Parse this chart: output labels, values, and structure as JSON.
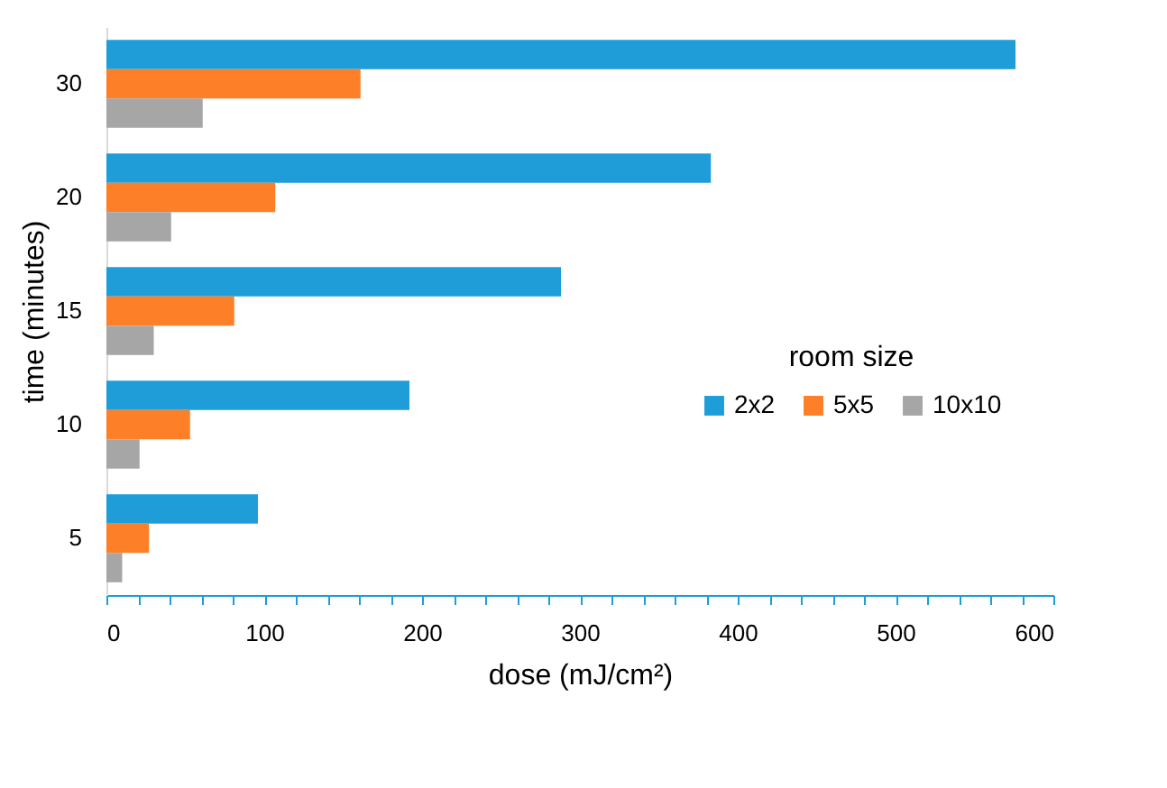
{
  "chart_data": {
    "type": "bar",
    "orientation": "horizontal",
    "xlabel": "dose (mJ/cm²)",
    "ylabel": "time (minutes)",
    "legend_title": "room size",
    "categories": [
      "30",
      "20",
      "15",
      "10",
      "5"
    ],
    "series": [
      {
        "name": "2x2",
        "color": "#1f9dd9",
        "values": [
          576,
          383,
          288,
          192,
          96
        ]
      },
      {
        "name": "5x5",
        "color": "#fd7f27",
        "values": [
          161,
          107,
          81,
          53,
          27
        ]
      },
      {
        "name": "10x10",
        "color": "#a6a6a6",
        "values": [
          61,
          41,
          30,
          21,
          10
        ]
      }
    ],
    "xlim": [
      0,
      600
    ],
    "xticks": [
      0,
      {
        "value": 20,
        "label": null
      },
      {
        "value": 40,
        "label": null
      },
      {
        "value": 60,
        "label": null
      },
      {
        "value": 80,
        "label": null
      },
      100,
      {
        "value": 120,
        "label": null
      },
      {
        "value": 140,
        "label": null
      },
      {
        "value": 160,
        "label": null
      },
      {
        "value": 180,
        "label": null
      },
      200,
      {
        "value": 220,
        "label": null
      },
      {
        "value": 240,
        "label": null
      },
      {
        "value": 260,
        "label": null
      },
      {
        "value": 280,
        "label": null
      },
      300,
      {
        "value": 320,
        "label": null
      },
      {
        "value": 340,
        "label": null
      },
      {
        "value": 360,
        "label": null
      },
      {
        "value": 380,
        "label": null
      },
      400,
      {
        "value": 420,
        "label": null
      },
      {
        "value": 440,
        "label": null
      },
      {
        "value": 460,
        "label": null
      },
      {
        "value": 480,
        "label": null
      },
      500,
      {
        "value": 520,
        "label": null
      },
      {
        "value": 540,
        "label": null
      },
      {
        "value": 560,
        "label": null
      },
      {
        "value": 580,
        "label": null
      },
      600
    ],
    "grid": false,
    "legend": "right"
  }
}
